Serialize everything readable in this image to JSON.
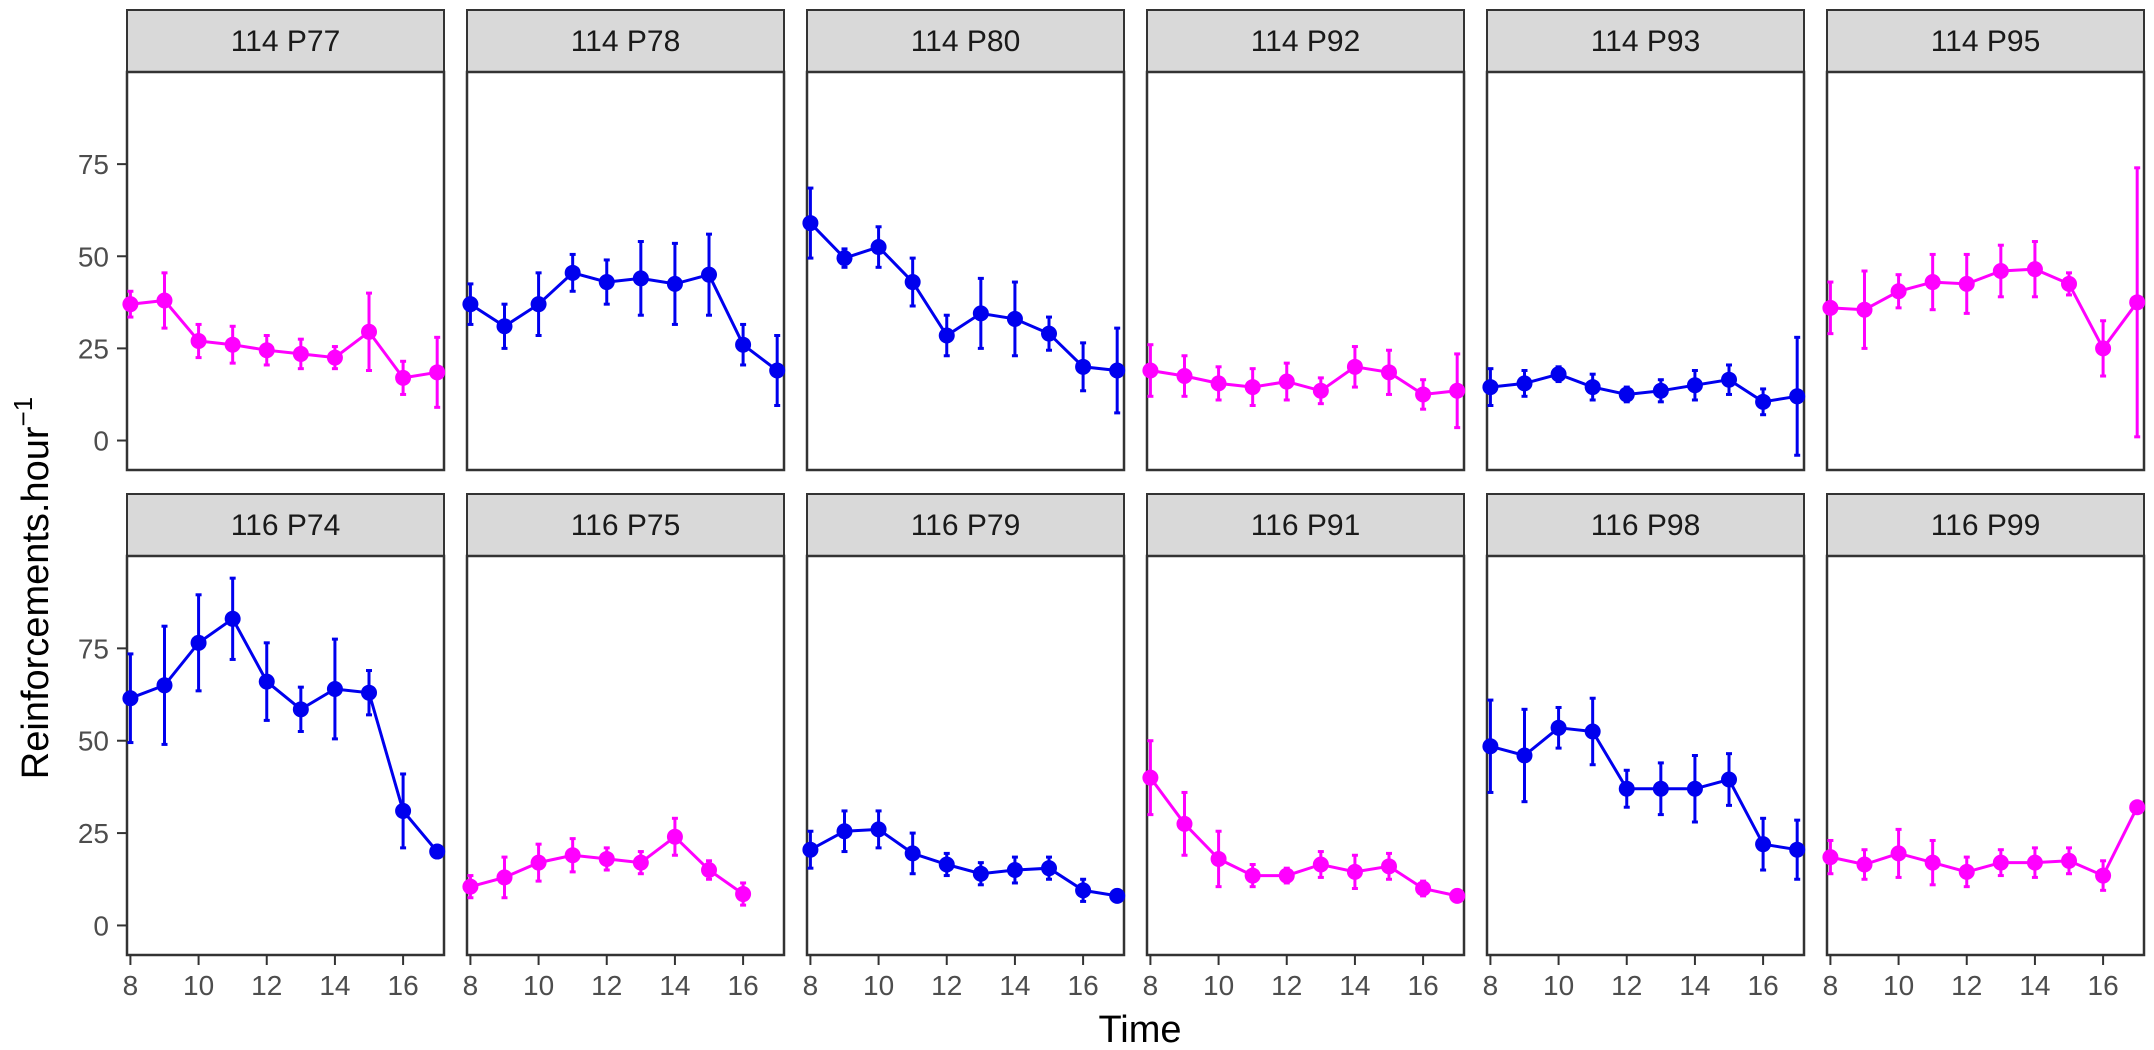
{
  "chart_data": {
    "type": "line",
    "xlabel": "Time",
    "ylabel": "Reinforcements.hour",
    "ylabel_superscript": "−1",
    "xlim": [
      7.9,
      17.2
    ],
    "ylim": [
      -8,
      100
    ],
    "x_ticks": [
      8,
      10,
      12,
      14,
      16
    ],
    "y_ticks": [
      0,
      25,
      50,
      75
    ],
    "colors": {
      "magenta": "#ff00ff",
      "blue": "#0000ee"
    },
    "panels": [
      {
        "label": "114 P77",
        "color": "magenta",
        "x": [
          8,
          9,
          10,
          11,
          12,
          13,
          14,
          15,
          16,
          17
        ],
        "y": [
          37,
          38,
          27,
          26,
          24.5,
          23.5,
          22.5,
          29.5,
          17,
          18.5
        ],
        "err": [
          3.5,
          7.5,
          4.5,
          5,
          4,
          4,
          3,
          10.5,
          4.5,
          9.5
        ]
      },
      {
        "label": "114 P78",
        "color": "blue",
        "x": [
          8,
          9,
          10,
          11,
          12,
          13,
          14,
          15,
          16,
          17
        ],
        "y": [
          37,
          31,
          37,
          45.5,
          43,
          44,
          42.5,
          45,
          26,
          19
        ],
        "err": [
          5.5,
          6,
          8.5,
          5,
          6,
          10,
          11,
          11,
          5.5,
          9.5
        ]
      },
      {
        "label": "114 P80",
        "color": "blue",
        "x": [
          8,
          9,
          10,
          11,
          12,
          13,
          14,
          15,
          16,
          17
        ],
        "y": [
          59,
          49.5,
          52.5,
          43,
          28.5,
          34.5,
          33,
          29,
          20,
          19
        ],
        "err": [
          9.5,
          2.5,
          5.5,
          6.5,
          5.5,
          9.5,
          10,
          4.5,
          6.5,
          11.5
        ]
      },
      {
        "label": "114 P92",
        "color": "magenta",
        "x": [
          8,
          9,
          10,
          11,
          12,
          13,
          14,
          15,
          16,
          17
        ],
        "y": [
          19,
          17.5,
          15.5,
          14.5,
          16,
          13.5,
          20,
          18.5,
          12.5,
          13.5
        ],
        "err": [
          7,
          5.5,
          4.5,
          5,
          5,
          3.5,
          5.5,
          6,
          4,
          10
        ]
      },
      {
        "label": "114 P93",
        "color": "blue",
        "x": [
          8,
          9,
          10,
          11,
          12,
          13,
          14,
          15,
          16,
          17
        ],
        "y": [
          14.5,
          15.5,
          18,
          14.5,
          12.5,
          13.5,
          15,
          16.5,
          10.5,
          12
        ],
        "err": [
          5,
          3.5,
          2,
          3.5,
          2,
          3,
          4,
          4,
          3.5,
          16
        ]
      },
      {
        "label": "114 P95",
        "color": "magenta",
        "x": [
          8,
          9,
          10,
          11,
          12,
          13,
          14,
          15,
          16,
          17
        ],
        "y": [
          36,
          35.5,
          40.5,
          43,
          42.5,
          46,
          46.5,
          42.5,
          25,
          37.5
        ],
        "err": [
          7,
          10.5,
          4.5,
          7.5,
          8,
          7,
          7.5,
          3,
          7.5,
          36.5
        ]
      },
      {
        "label": "116 P74",
        "color": "blue",
        "x": [
          8,
          9,
          10,
          11,
          12,
          13,
          14,
          15,
          16,
          17
        ],
        "y": [
          61.5,
          65,
          76.5,
          83,
          66,
          58.5,
          64,
          63,
          31,
          20
        ],
        "err": [
          12,
          16,
          13,
          11,
          10.5,
          6,
          13.5,
          6,
          10,
          1
        ]
      },
      {
        "label": "116 P75",
        "color": "magenta",
        "x": [
          8,
          9,
          10,
          11,
          12,
          13,
          14,
          15,
          16
        ],
        "y": [
          10.5,
          13,
          17,
          19,
          18,
          17,
          24,
          15,
          8.5
        ],
        "err": [
          3,
          5.5,
          5,
          4.5,
          3,
          3,
          5,
          2.5,
          3
        ]
      },
      {
        "label": "116 P79",
        "color": "blue",
        "x": [
          8,
          9,
          10,
          11,
          12,
          13,
          14,
          15,
          16,
          17
        ],
        "y": [
          20.5,
          25.5,
          26,
          19.5,
          16.5,
          14,
          15,
          15.5,
          9.5,
          8
        ],
        "err": [
          5,
          5.5,
          5,
          5.5,
          3,
          3,
          3.5,
          3,
          3,
          1
        ]
      },
      {
        "label": "116 P91",
        "color": "magenta",
        "x": [
          8,
          9,
          10,
          11,
          12,
          13,
          14,
          15,
          16,
          17
        ],
        "y": [
          40,
          27.5,
          18,
          13.5,
          13.5,
          16.5,
          14.5,
          16,
          10,
          8
        ],
        "err": [
          10,
          8.5,
          7.5,
          3,
          2,
          3.5,
          4.5,
          3.5,
          2,
          1
        ]
      },
      {
        "label": "116 P98",
        "color": "blue",
        "x": [
          8,
          9,
          10,
          11,
          12,
          13,
          14,
          15,
          16,
          17
        ],
        "y": [
          48.5,
          46,
          53.5,
          52.5,
          37,
          37,
          37,
          39.5,
          22,
          20.5
        ],
        "err": [
          12.5,
          12.5,
          5.5,
          9,
          5,
          7,
          9,
          7,
          7,
          8
        ]
      },
      {
        "label": "116 P99",
        "color": "magenta",
        "x": [
          8,
          9,
          10,
          11,
          12,
          13,
          14,
          15,
          16,
          17
        ],
        "y": [
          18.5,
          16.5,
          19.5,
          17,
          14.5,
          17,
          17,
          17.5,
          13.5,
          32
        ],
        "err": [
          4.5,
          4,
          6.5,
          6,
          4,
          3.5,
          4,
          3.5,
          4,
          1
        ]
      }
    ]
  }
}
